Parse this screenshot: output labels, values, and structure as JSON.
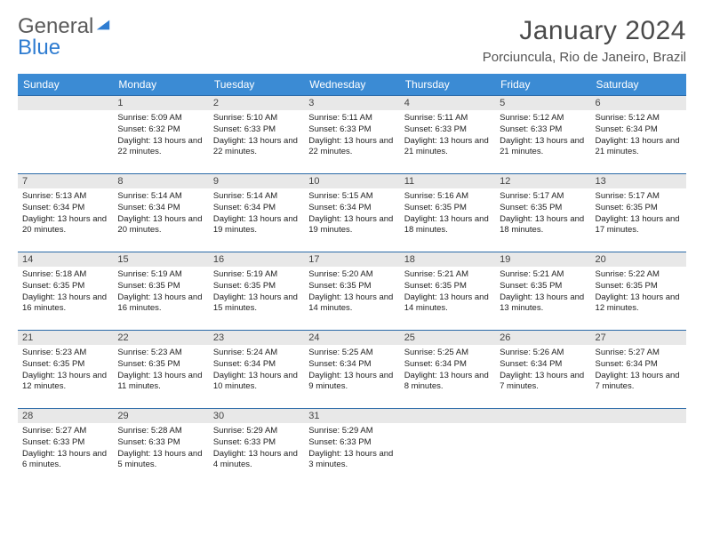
{
  "logo": {
    "word1": "General",
    "word2": "Blue"
  },
  "title": "January 2024",
  "location": "Porciuncula, Rio de Janeiro, Brazil",
  "colors": {
    "header_bg": "#3b8bd4",
    "header_text": "#ffffff",
    "daynum_bg": "#e8e8e8",
    "row_border": "#2b6aa8",
    "logo_gray": "#5a5a5a",
    "logo_blue": "#2e7cd1"
  },
  "weekdays": [
    "Sunday",
    "Monday",
    "Tuesday",
    "Wednesday",
    "Thursday",
    "Friday",
    "Saturday"
  ],
  "weeks": [
    [
      null,
      {
        "n": "1",
        "sr": "5:09 AM",
        "ss": "6:32 PM",
        "dl": "13 hours and 22 minutes."
      },
      {
        "n": "2",
        "sr": "5:10 AM",
        "ss": "6:33 PM",
        "dl": "13 hours and 22 minutes."
      },
      {
        "n": "3",
        "sr": "5:11 AM",
        "ss": "6:33 PM",
        "dl": "13 hours and 22 minutes."
      },
      {
        "n": "4",
        "sr": "5:11 AM",
        "ss": "6:33 PM",
        "dl": "13 hours and 21 minutes."
      },
      {
        "n": "5",
        "sr": "5:12 AM",
        "ss": "6:33 PM",
        "dl": "13 hours and 21 minutes."
      },
      {
        "n": "6",
        "sr": "5:12 AM",
        "ss": "6:34 PM",
        "dl": "13 hours and 21 minutes."
      }
    ],
    [
      {
        "n": "7",
        "sr": "5:13 AM",
        "ss": "6:34 PM",
        "dl": "13 hours and 20 minutes."
      },
      {
        "n": "8",
        "sr": "5:14 AM",
        "ss": "6:34 PM",
        "dl": "13 hours and 20 minutes."
      },
      {
        "n": "9",
        "sr": "5:14 AM",
        "ss": "6:34 PM",
        "dl": "13 hours and 19 minutes."
      },
      {
        "n": "10",
        "sr": "5:15 AM",
        "ss": "6:34 PM",
        "dl": "13 hours and 19 minutes."
      },
      {
        "n": "11",
        "sr": "5:16 AM",
        "ss": "6:35 PM",
        "dl": "13 hours and 18 minutes."
      },
      {
        "n": "12",
        "sr": "5:17 AM",
        "ss": "6:35 PM",
        "dl": "13 hours and 18 minutes."
      },
      {
        "n": "13",
        "sr": "5:17 AM",
        "ss": "6:35 PM",
        "dl": "13 hours and 17 minutes."
      }
    ],
    [
      {
        "n": "14",
        "sr": "5:18 AM",
        "ss": "6:35 PM",
        "dl": "13 hours and 16 minutes."
      },
      {
        "n": "15",
        "sr": "5:19 AM",
        "ss": "6:35 PM",
        "dl": "13 hours and 16 minutes."
      },
      {
        "n": "16",
        "sr": "5:19 AM",
        "ss": "6:35 PM",
        "dl": "13 hours and 15 minutes."
      },
      {
        "n": "17",
        "sr": "5:20 AM",
        "ss": "6:35 PM",
        "dl": "13 hours and 14 minutes."
      },
      {
        "n": "18",
        "sr": "5:21 AM",
        "ss": "6:35 PM",
        "dl": "13 hours and 14 minutes."
      },
      {
        "n": "19",
        "sr": "5:21 AM",
        "ss": "6:35 PM",
        "dl": "13 hours and 13 minutes."
      },
      {
        "n": "20",
        "sr": "5:22 AM",
        "ss": "6:35 PM",
        "dl": "13 hours and 12 minutes."
      }
    ],
    [
      {
        "n": "21",
        "sr": "5:23 AM",
        "ss": "6:35 PM",
        "dl": "13 hours and 12 minutes."
      },
      {
        "n": "22",
        "sr": "5:23 AM",
        "ss": "6:35 PM",
        "dl": "13 hours and 11 minutes."
      },
      {
        "n": "23",
        "sr": "5:24 AM",
        "ss": "6:34 PM",
        "dl": "13 hours and 10 minutes."
      },
      {
        "n": "24",
        "sr": "5:25 AM",
        "ss": "6:34 PM",
        "dl": "13 hours and 9 minutes."
      },
      {
        "n": "25",
        "sr": "5:25 AM",
        "ss": "6:34 PM",
        "dl": "13 hours and 8 minutes."
      },
      {
        "n": "26",
        "sr": "5:26 AM",
        "ss": "6:34 PM",
        "dl": "13 hours and 7 minutes."
      },
      {
        "n": "27",
        "sr": "5:27 AM",
        "ss": "6:34 PM",
        "dl": "13 hours and 7 minutes."
      }
    ],
    [
      {
        "n": "28",
        "sr": "5:27 AM",
        "ss": "6:33 PM",
        "dl": "13 hours and 6 minutes."
      },
      {
        "n": "29",
        "sr": "5:28 AM",
        "ss": "6:33 PM",
        "dl": "13 hours and 5 minutes."
      },
      {
        "n": "30",
        "sr": "5:29 AM",
        "ss": "6:33 PM",
        "dl": "13 hours and 4 minutes."
      },
      {
        "n": "31",
        "sr": "5:29 AM",
        "ss": "6:33 PM",
        "dl": "13 hours and 3 minutes."
      },
      null,
      null,
      null
    ]
  ],
  "labels": {
    "sunrise": "Sunrise:",
    "sunset": "Sunset:",
    "daylight": "Daylight:"
  }
}
